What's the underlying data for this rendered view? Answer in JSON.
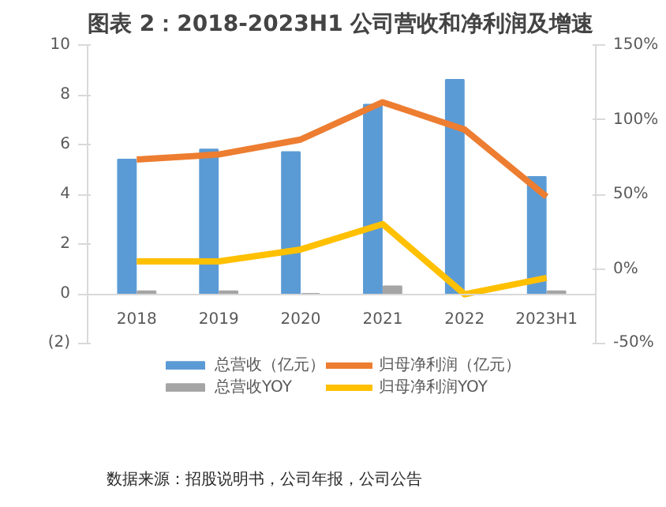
{
  "chart_data": {
    "type": "bar",
    "title": "图表 2：2018-2023H1 公司营收和净利润及增速",
    "categories": [
      "2018",
      "2019",
      "2020",
      "2021",
      "2022",
      "2023H1"
    ],
    "series": [
      {
        "name": "总营收（亿元）",
        "color": "#5b9bd5",
        "values": [
          5.4,
          5.8,
          5.7,
          7.6,
          8.6,
          4.7
        ]
      },
      {
        "name": "总营收YOY",
        "color": "#a5a5a5",
        "values": [
          0.1,
          0.1,
          0,
          0.3,
          null,
          0.1
        ]
      },
      {
        "name": "归母净利润（亿元）",
        "type": "line",
        "color": "#ed7d31",
        "values": [
          5.4,
          5.6,
          6.2,
          7.7,
          6.6,
          3.9
        ]
      },
      {
        "name": "归母净利润YOY",
        "type": "line",
        "color": "#ffc000",
        "axis": "y2",
        "values": [
          5,
          5,
          13,
          30,
          -17,
          -6
        ]
      }
    ],
    "ylim": [
      -2,
      10
    ],
    "yticks": [
      {
        "value": -2,
        "label": "(2)"
      },
      0,
      2,
      4,
      6,
      8,
      10
    ],
    "y2lim": [
      -50,
      150
    ],
    "y2ticks": [
      {
        "value": -50,
        "label": "-50%"
      },
      {
        "value": 0,
        "label": "0%"
      },
      {
        "value": 50,
        "label": "50%"
      },
      {
        "value": 100,
        "label": "100%"
      },
      {
        "value": 150,
        "label": "150%"
      }
    ],
    "legend": "bottom",
    "grid": false,
    "line_style": "solid",
    "annotations": [
      "数据来源：招股说明书，公司年报，公司公告"
    ]
  }
}
